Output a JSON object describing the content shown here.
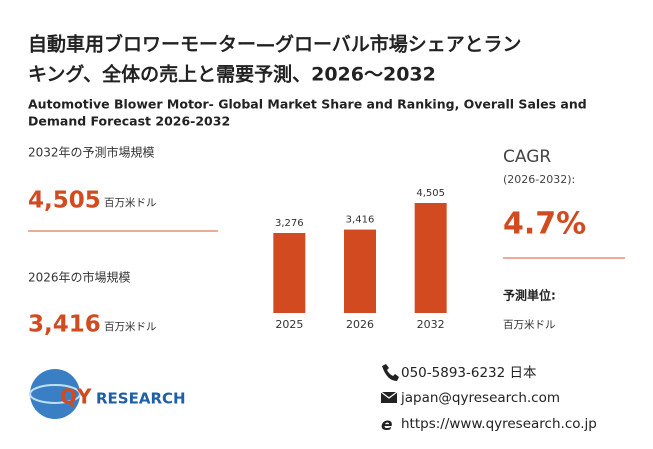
{
  "header": {
    "title_line1": "自動車用ブロワーモーター—グローバル市場シェアとラン",
    "title_line2": "キング、全体の売上と需要予測、2026～2032",
    "subtitle_line1": "Automotive Blower Motor- Global Market Share and Ranking, Overall Sales and",
    "subtitle_line2": "Demand Forecast 2026-2032"
  },
  "stats": [
    {
      "label": "2032年の予測市場規模",
      "value": "4,505",
      "unit": "百万米ドル"
    },
    {
      "label": "2026年の市場規模",
      "value": "3,416",
      "unit": "百万米ドル"
    }
  ],
  "cagr": {
    "label": "CAGR",
    "period": "(2026-2032):",
    "value": "4.7%"
  },
  "forecast_unit": {
    "label": "予測単位:",
    "value": "百万米ドル"
  },
  "contact": {
    "phone": "050-5893-6232 日本",
    "email": "japan@qyresearch.com",
    "web": "https://www.qyresearch.co.jp"
  },
  "logo": {
    "text_1": "QY",
    "text_2": "RESEARCH"
  },
  "chart_data": {
    "type": "bar",
    "categories": [
      "2025",
      "2026",
      "2032"
    ],
    "values": [
      3276,
      3416,
      4505
    ],
    "value_labels": [
      "3,276",
      "3,416",
      "4,505"
    ],
    "color": "#d24a1f"
  }
}
